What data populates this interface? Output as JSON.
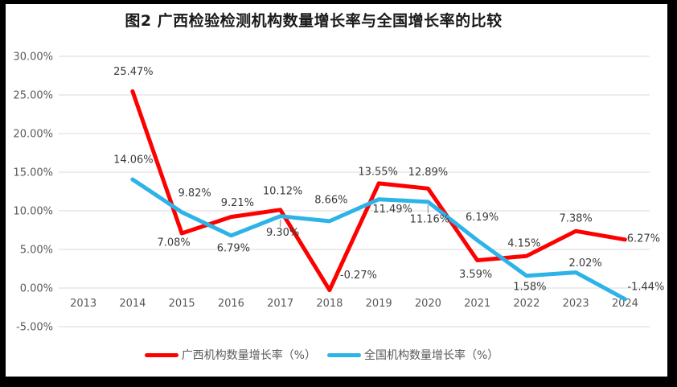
{
  "chart_data": {
    "type": "line",
    "title": "图2 广西检验检测机构数量增长率与全国增长率的比较",
    "categories": [
      "2013",
      "2014",
      "2015",
      "2016",
      "2017",
      "2018",
      "2019",
      "2020",
      "2021",
      "2022",
      "2023",
      "2024"
    ],
    "y_tick_labels": [
      "30.00%",
      "25.00%",
      "20.00%",
      "15.00%",
      "10.00%",
      "5.00%",
      "0.00%",
      "-5.00%"
    ],
    "ylim": [
      -5,
      30
    ],
    "y_tick_step": 5,
    "grid": true,
    "legend_position": "bottom",
    "grid_color": "#d9d9d9",
    "axis_label_color": "#595959",
    "data_label_color": "#3a3a3a",
    "leader_line_color": "#a6a6a6",
    "series": [
      {
        "name": "广西机构数量增长率（%）",
        "color": "#fe0000",
        "values": [
          null,
          25.47,
          7.08,
          9.21,
          10.12,
          -0.27,
          13.55,
          12.89,
          3.59,
          4.15,
          7.38,
          6.27
        ],
        "data_labels": [
          null,
          "25.47%",
          "7.08%",
          "9.21%",
          "10.12%",
          "-0.27%",
          "13.55%",
          "12.89%",
          "3.59%",
          "4.15%",
          "7.38%",
          "6.27%"
        ],
        "label_offsets": [
          null,
          [
            1,
            -25
          ],
          [
            -10,
            11
          ],
          [
            8,
            -18
          ],
          [
            3,
            -24
          ],
          [
            36,
            -19
          ],
          [
            -1,
            -15
          ],
          [
            0,
            -21
          ],
          [
            -2,
            17
          ],
          [
            -3,
            -16
          ],
          [
            0,
            -16
          ],
          [
            23,
            -2
          ]
        ],
        "leader_indices": []
      },
      {
        "name": "全国机构数量增长率（%）",
        "color": "#2db3e8",
        "values": [
          null,
          14.06,
          9.82,
          6.79,
          9.3,
          8.66,
          11.49,
          11.16,
          6.19,
          1.58,
          2.02,
          -1.44
        ],
        "data_labels": [
          null,
          "14.06%",
          "9.82%",
          "6.79%",
          "9.30%",
          "8.66%",
          "11.49%",
          "11.16%",
          "6.19%",
          "1.58%",
          "2.02%",
          "-1.44%"
        ],
        "label_offsets": [
          null,
          [
            1,
            -25
          ],
          [
            16,
            -24
          ],
          [
            3,
            15
          ],
          [
            3,
            20
          ],
          [
            2,
            -27
          ],
          [
            17,
            12
          ],
          [
            2,
            21
          ],
          [
            6,
            -29
          ],
          [
            4,
            13
          ],
          [
            12,
            -12
          ],
          [
            26,
            -16
          ]
        ],
        "leader_indices": [
          4,
          7
        ]
      }
    ]
  }
}
